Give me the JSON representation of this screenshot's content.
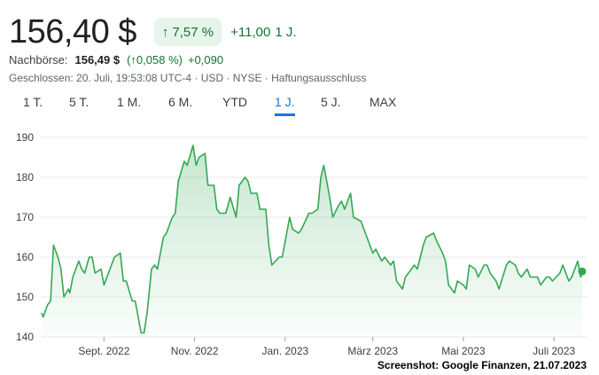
{
  "quote": {
    "price": "156,40 $",
    "change_pct": "7,57 %",
    "change_abs": "+11,00",
    "change_period": "1 J."
  },
  "after_hours": {
    "label": "Nachbörse:",
    "price": "156,49 $",
    "change_pct": "(↑0,058 %)",
    "change_abs": "+0,090"
  },
  "meta": "Geschlossen: 20. Juli, 19:53:08 UTC-4 · USD · NYSE · Haftungsausschluss",
  "tabs": [
    "1 T.",
    "5 T.",
    "1 M.",
    "6 M.",
    "YTD",
    "1 J.",
    "5 J.",
    "MAX"
  ],
  "active_tab": "1 J.",
  "colors": {
    "line": "#34a853",
    "positive": "#137333",
    "positive_bg": "#e6f4ea",
    "accent": "#1a73e8",
    "gridline": "#e8eaed"
  },
  "credit": "Screenshot: Google Finanzen, 21.07.2023",
  "chart_data": {
    "type": "area",
    "ylim": [
      140,
      190
    ],
    "yticks": [
      190,
      180,
      170,
      160,
      150,
      140
    ],
    "xlim": [
      "2022-07-21",
      "2023-07-20"
    ],
    "xticks": [
      {
        "date": "2022-09-01",
        "label": "Sept. 2022"
      },
      {
        "date": "2022-11-01",
        "label": "Nov. 2022"
      },
      {
        "date": "2023-01-01",
        "label": "Jan. 2023"
      },
      {
        "date": "2023-03-01",
        "label": "März 2023"
      },
      {
        "date": "2023-05-01",
        "label": "Mai 2023"
      },
      {
        "date": "2023-07-01",
        "label": "Juli 2023"
      }
    ],
    "grid": true,
    "series": [
      {
        "x": [
          "2022-07-21",
          "2022-07-22",
          "2022-07-25",
          "2022-07-27",
          "2022-07-29",
          "2022-08-01",
          "2022-08-03",
          "2022-08-05",
          "2022-08-08",
          "2022-08-09",
          "2022-08-11",
          "2022-08-15",
          "2022-08-17",
          "2022-08-19",
          "2022-08-22",
          "2022-08-24",
          "2022-08-26",
          "2022-08-30",
          "2022-09-01",
          "2022-09-06",
          "2022-09-08",
          "2022-09-12",
          "2022-09-14",
          "2022-09-16",
          "2022-09-20",
          "2022-09-22",
          "2022-09-26",
          "2022-09-28",
          "2022-09-30",
          "2022-10-03",
          "2022-10-05",
          "2022-10-07",
          "2022-10-11",
          "2022-10-13",
          "2022-10-17",
          "2022-10-19",
          "2022-10-21",
          "2022-10-25",
          "2022-10-27",
          "2022-10-31",
          "2022-11-02",
          "2022-11-04",
          "2022-11-08",
          "2022-11-10",
          "2022-11-14",
          "2022-11-16",
          "2022-11-18",
          "2022-11-22",
          "2022-11-25",
          "2022-11-29",
          "2022-12-01",
          "2022-12-05",
          "2022-12-07",
          "2022-12-09",
          "2022-12-13",
          "2022-12-15",
          "2022-12-19",
          "2022-12-21",
          "2022-12-23",
          "2022-12-28",
          "2022-12-30",
          "2023-01-04",
          "2023-01-06",
          "2023-01-10",
          "2023-01-12",
          "2023-01-17",
          "2023-01-19",
          "2023-01-23",
          "2023-01-25",
          "2023-01-27",
          "2023-01-31",
          "2023-02-02",
          "2023-02-06",
          "2023-02-08",
          "2023-02-10",
          "2023-02-14",
          "2023-02-16",
          "2023-02-21",
          "2023-02-23",
          "2023-02-27",
          "2023-03-01",
          "2023-03-03",
          "2023-03-07",
          "2023-03-09",
          "2023-03-13",
          "2023-03-15",
          "2023-03-17",
          "2023-03-21",
          "2023-03-23",
          "2023-03-27",
          "2023-03-29",
          "2023-03-31",
          "2023-04-04",
          "2023-04-06",
          "2023-04-11",
          "2023-04-13",
          "2023-04-17",
          "2023-04-19",
          "2023-04-21",
          "2023-04-25",
          "2023-04-27",
          "2023-05-01",
          "2023-05-03",
          "2023-05-05",
          "2023-05-09",
          "2023-05-11",
          "2023-05-15",
          "2023-05-17",
          "2023-05-19",
          "2023-05-23",
          "2023-05-25",
          "2023-05-30",
          "2023-06-01",
          "2023-06-05",
          "2023-06-07",
          "2023-06-09",
          "2023-06-13",
          "2023-06-15",
          "2023-06-20",
          "2023-06-22",
          "2023-06-26",
          "2023-06-28",
          "2023-06-30",
          "2023-07-05",
          "2023-07-07",
          "2023-07-11",
          "2023-07-13",
          "2023-07-17",
          "2023-07-19",
          "2023-07-20"
        ],
        "y": [
          146,
          145,
          148,
          149,
          163,
          160,
          157,
          150,
          152,
          151,
          155,
          159,
          157,
          156,
          160,
          160,
          156,
          157,
          153,
          158,
          160,
          161,
          154,
          154,
          149,
          149,
          141,
          141,
          146,
          157,
          158,
          157,
          165,
          166,
          170,
          171,
          179,
          184,
          183,
          188,
          183,
          185,
          186,
          178,
          178,
          172,
          171,
          171,
          175,
          170,
          178,
          180,
          179,
          176,
          176,
          172,
          172,
          163,
          158,
          160,
          160,
          170,
          167,
          166,
          167,
          171,
          171,
          172,
          180,
          183,
          175,
          170,
          173,
          174,
          172,
          176,
          170,
          169,
          167,
          163,
          161,
          162,
          159,
          160,
          158,
          159,
          154,
          152,
          155,
          157,
          158,
          157,
          163,
          165,
          166,
          164,
          161,
          159,
          153,
          151,
          154,
          153,
          152,
          158,
          157,
          155,
          158,
          158,
          156,
          154,
          152,
          158,
          159,
          158,
          156,
          155,
          157,
          155,
          155,
          153,
          155,
          155,
          154,
          156,
          158,
          154,
          155,
          159,
          155,
          156.4
        ]
      }
    ]
  }
}
